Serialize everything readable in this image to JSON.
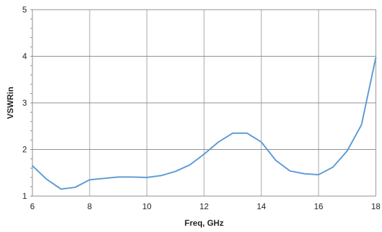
{
  "chart_data": {
    "type": "line",
    "title": "",
    "xlabel": "Freq,  GHz",
    "ylabel": "VSWRin",
    "xlim": [
      6,
      18
    ],
    "ylim": [
      1,
      5
    ],
    "x_ticks": [
      6,
      8,
      10,
      12,
      14,
      16,
      18
    ],
    "y_ticks": [
      1,
      2,
      3,
      4,
      5
    ],
    "grid": true,
    "legend": "none",
    "series": [
      {
        "color": "#5b9bd5",
        "x": [
          6,
          6.5,
          7,
          7.5,
          8,
          8.5,
          9,
          9.5,
          10,
          10.5,
          11,
          11.5,
          12,
          12.5,
          13,
          13.5,
          14,
          14.5,
          15,
          15.5,
          16,
          16.5,
          17,
          17.5,
          18
        ],
        "y": [
          1.65,
          1.36,
          1.15,
          1.19,
          1.35,
          1.38,
          1.41,
          1.41,
          1.4,
          1.44,
          1.53,
          1.67,
          1.9,
          2.16,
          2.35,
          2.35,
          2.16,
          1.77,
          1.54,
          1.48,
          1.46,
          1.62,
          1.97,
          2.53,
          3.97
        ]
      }
    ]
  }
}
